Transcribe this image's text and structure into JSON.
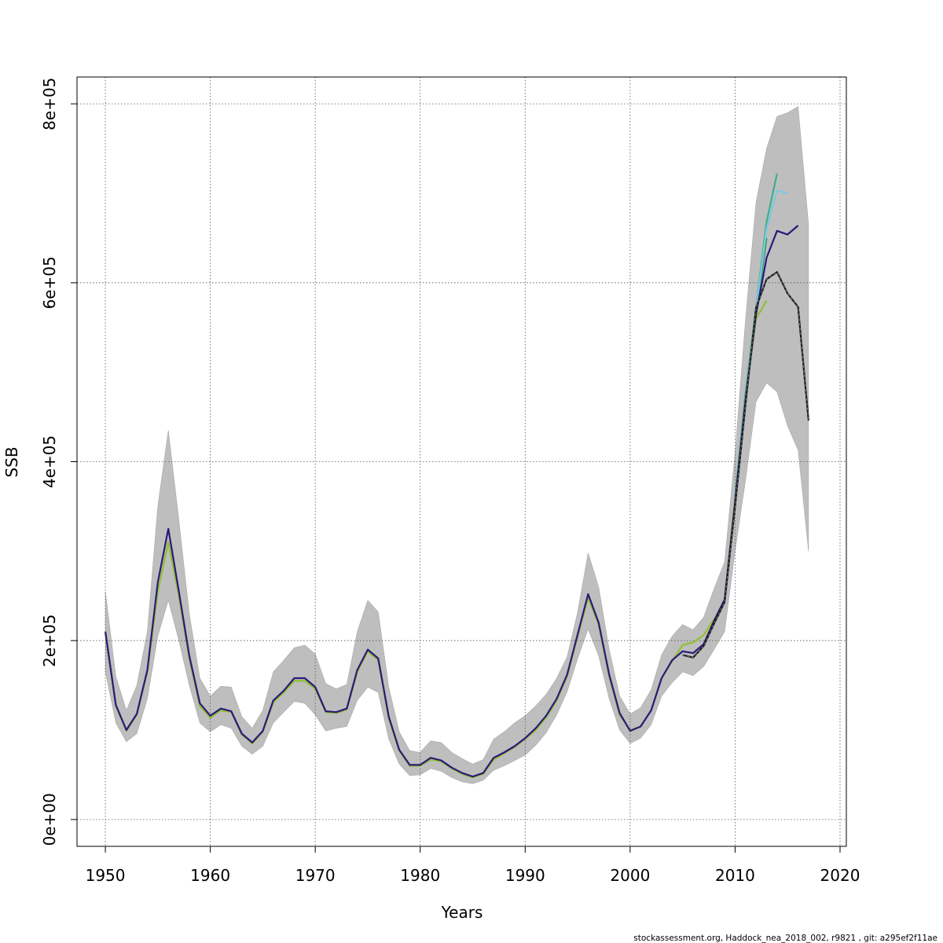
{
  "chart_data": {
    "type": "line",
    "title": "",
    "xlabel": "Years",
    "ylabel": "SSB",
    "xlim": [
      1947.3,
      2020.6
    ],
    "ylim": [
      -30000,
      830000
    ],
    "x_ticks": [
      1950,
      1960,
      1970,
      1980,
      1990,
      2000,
      2010,
      2020
    ],
    "x_tick_labels": [
      "1950",
      "1960",
      "1970",
      "1980",
      "1990",
      "2000",
      "2010",
      "2020"
    ],
    "y_ticks": [
      0,
      200000,
      400000,
      600000,
      800000
    ],
    "y_tick_labels": [
      "0e+00",
      "2e+05",
      "4e+05",
      "6e+05",
      "8e+05"
    ],
    "grid": true,
    "confidence_band": {
      "years": [
        1950,
        1951,
        1952,
        1953,
        1954,
        1955,
        1956,
        1957,
        1958,
        1959,
        1960,
        1961,
        1962,
        1963,
        1964,
        1965,
        1966,
        1967,
        1968,
        1969,
        1970,
        1971,
        1972,
        1973,
        1974,
        1975,
        1976,
        1977,
        1978,
        1979,
        1980,
        1981,
        1982,
        1983,
        1984,
        1985,
        1986,
        1987,
        1988,
        1989,
        1990,
        1991,
        1992,
        1993,
        1994,
        1995,
        1996,
        1997,
        1998,
        1999,
        2000,
        2001,
        2002,
        2003,
        2004,
        2005,
        2006,
        2007,
        2008,
        2009,
        2010,
        2011,
        2012,
        2013,
        2014,
        2015,
        2016,
        2017
      ],
      "upper": [
        255000,
        160000,
        122000,
        150000,
        210000,
        350000,
        435000,
        335000,
        230000,
        158000,
        138000,
        149000,
        148000,
        115000,
        102000,
        122000,
        165000,
        178000,
        192000,
        195000,
        185000,
        152000,
        146000,
        151000,
        210000,
        245000,
        232000,
        148000,
        98000,
        77000,
        75000,
        88000,
        86000,
        75000,
        68000,
        62000,
        67000,
        90000,
        98000,
        108000,
        116000,
        127000,
        140000,
        158000,
        182000,
        232000,
        298000,
        260000,
        190000,
        138000,
        118000,
        125000,
        145000,
        184000,
        205000,
        218000,
        212000,
        226000,
        258000,
        288000,
        410000,
        560000,
        690000,
        750000,
        786000,
        790000,
        797000,
        665000
      ],
      "lower": [
        165000,
        108000,
        87000,
        96000,
        135000,
        205000,
        245000,
        200000,
        150000,
        108000,
        98000,
        106000,
        102000,
        82000,
        73000,
        82000,
        108000,
        120000,
        132000,
        130000,
        117000,
        99000,
        102000,
        104000,
        133000,
        148000,
        142000,
        90000,
        62000,
        49000,
        50000,
        57000,
        54000,
        47000,
        42000,
        40000,
        44000,
        55000,
        60000,
        66000,
        72000,
        83000,
        97000,
        117000,
        143000,
        180000,
        213000,
        183000,
        135000,
        100000,
        85000,
        91000,
        106000,
        138000,
        153000,
        165000,
        161000,
        171000,
        190000,
        210000,
        300000,
        380000,
        467000,
        488000,
        478000,
        440000,
        413000,
        300000
      ]
    },
    "series": [
      {
        "name": "",
        "color": "#90c030",
        "x": [
          1950,
          1951,
          1952,
          1953,
          1954,
          1955,
          1956,
          1957,
          1958,
          1959,
          1960,
          1961,
          1962,
          1963,
          1964,
          1965,
          1966,
          1967,
          1968,
          1969,
          1970,
          1971,
          1972,
          1973,
          1974,
          1975,
          1976,
          1977,
          1978,
          1979,
          1980,
          1981,
          1982,
          1983,
          1984,
          1985,
          1986,
          1987,
          1988,
          1989,
          1990,
          1991,
          1992,
          1993,
          1994,
          1995,
          1996,
          1997,
          1998,
          1999,
          2000,
          2001,
          2002,
          2003,
          2004,
          2005,
          2006,
          2007,
          2008,
          2009,
          2010,
          2011,
          2012,
          2013
        ],
        "y": [
          208000,
          127000,
          99000,
          117000,
          165000,
          255000,
          310000,
          250000,
          180000,
          127000,
          114000,
          122000,
          120000,
          95000,
          85000,
          98000,
          131000,
          142000,
          155000,
          155000,
          146000,
          120000,
          119000,
          123000,
          165000,
          188000,
          178000,
          113000,
          77000,
          60000,
          60000,
          67000,
          65000,
          57000,
          51000,
          47000,
          51000,
          67000,
          74000,
          81000,
          90000,
          100000,
          114000,
          133000,
          160000,
          205000,
          248000,
          218000,
          160000,
          117000,
          100000,
          104000,
          122000,
          158000,
          177000,
          195000,
          198000,
          206000,
          224000,
          244000,
          358000,
          475000,
          560000,
          580000
        ]
      },
      {
        "name": "",
        "color": "#2e9a5a",
        "x": [
          2010,
          2011,
          2012,
          2013
        ],
        "y": [
          355000,
          470000,
          565000,
          650000
        ]
      },
      {
        "name": "",
        "color": "#3cb08a",
        "x": [
          2010,
          2011,
          2012,
          2013,
          2014
        ],
        "y": [
          360000,
          478000,
          572000,
          668000,
          722000
        ]
      },
      {
        "name": "",
        "color": "#7ec8e3",
        "x": [
          2010,
          2011,
          2012,
          2013,
          2014,
          2015
        ],
        "y": [
          355000,
          472000,
          570000,
          660000,
          703000,
          700000
        ]
      },
      {
        "name": "",
        "color": "#2a1a7a",
        "x": [
          1950,
          1951,
          1952,
          1953,
          1954,
          1955,
          1956,
          1957,
          1958,
          1959,
          1960,
          1961,
          1962,
          1963,
          1964,
          1965,
          1966,
          1967,
          1968,
          1969,
          1970,
          1971,
          1972,
          1973,
          1974,
          1975,
          1976,
          1977,
          1978,
          1979,
          1980,
          1981,
          1982,
          1983,
          1984,
          1985,
          1986,
          1987,
          1988,
          1989,
          1990,
          1991,
          1992,
          1993,
          1994,
          1995,
          1996,
          1997,
          1998,
          1999,
          2000,
          2001,
          2002,
          2003,
          2004,
          2005,
          2006,
          2007,
          2008,
          2009,
          2010,
          2011,
          2012,
          2013,
          2014,
          2015,
          2016
        ],
        "y": [
          210000,
          128000,
          100000,
          118000,
          167000,
          265000,
          325000,
          255000,
          183000,
          130000,
          116000,
          124000,
          121000,
          96000,
          86000,
          99000,
          133000,
          144000,
          158000,
          158000,
          148000,
          121000,
          120000,
          124000,
          167000,
          190000,
          180000,
          115000,
          78000,
          61000,
          61000,
          69000,
          66000,
          58000,
          52000,
          48000,
          52000,
          69000,
          75000,
          82000,
          91000,
          102000,
          116000,
          135000,
          162000,
          207000,
          252000,
          220000,
          162000,
          119000,
          99000,
          104000,
          122000,
          158000,
          178000,
          188000,
          186000,
          196000,
          222000,
          246000,
          355000,
          470000,
          565000,
          628000,
          658000,
          654000,
          664000
        ]
      },
      {
        "name": "",
        "color": "#1a1a1a",
        "x": [
          2005,
          2006,
          2007,
          2008,
          2009,
          2010,
          2011,
          2012,
          2013,
          2014,
          2015,
          2016,
          2017
        ],
        "y": [
          184000,
          181000,
          194000,
          219000,
          243000,
          350000,
          465000,
          572000,
          604000,
          612000,
          588000,
          573000,
          446000
        ]
      }
    ]
  },
  "footer_text": "stockassessment.org, Haddock_nea_2018_002, r9821 , git: a295ef2f11ae"
}
